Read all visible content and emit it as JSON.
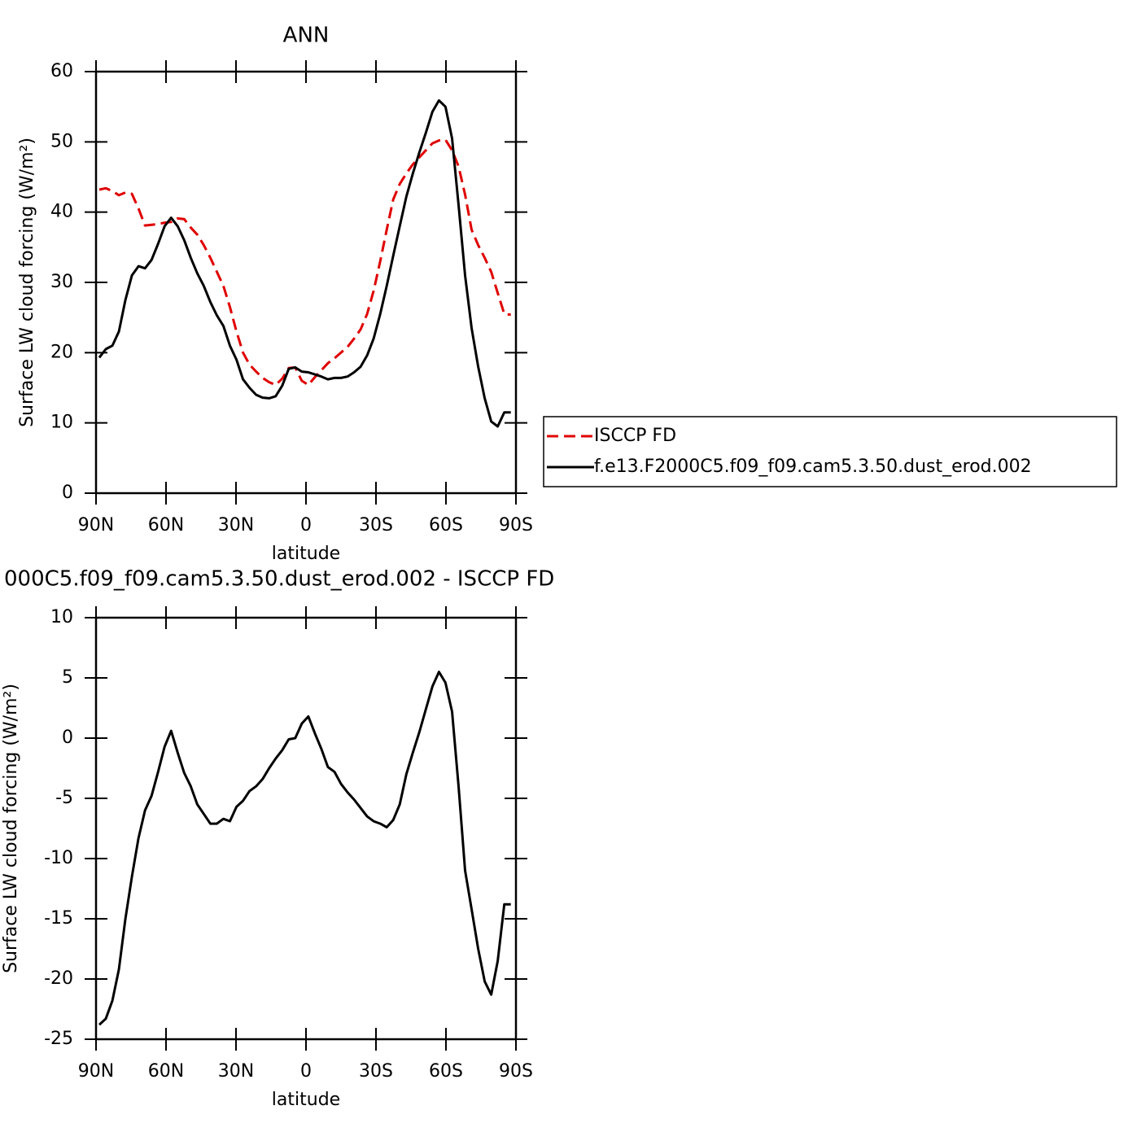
{
  "chart_data": [
    {
      "type": "line",
      "title": "ANN",
      "xlabel": "latitude",
      "ylabel": "Surface LW cloud forcing (W/m²)",
      "x": [
        88.6,
        85.8,
        83.0,
        80.2,
        77.4,
        74.6,
        71.8,
        69.0,
        66.2,
        63.4,
        60.6,
        57.8,
        55.0,
        52.2,
        49.4,
        46.6,
        43.8,
        41.0,
        38.2,
        35.4,
        32.6,
        29.8,
        27.0,
        24.2,
        21.4,
        18.6,
        15.8,
        13.0,
        10.2,
        7.4,
        4.6,
        1.8,
        -1.0,
        -3.8,
        -6.6,
        -9.4,
        -12.2,
        -15.0,
        -17.8,
        -20.6,
        -23.4,
        -26.2,
        -29.0,
        -31.8,
        -34.6,
        -37.4,
        -40.2,
        -43.0,
        -45.8,
        -48.6,
        -51.4,
        -54.2,
        -57.0,
        -59.8,
        -62.6,
        -65.4,
        -68.2,
        -71.0,
        -73.8,
        -76.6,
        -79.4,
        -82.2,
        -85.0,
        -87.8
      ],
      "series": [
        {
          "name": "ISCCP FD",
          "color": "#e00000",
          "style": "dashed",
          "values": [
            43.2,
            43.4,
            43,
            42.4,
            42.8,
            42.6,
            40.5,
            38.1,
            38.2,
            38.3,
            38.5,
            38.6,
            39.1,
            39,
            37.8,
            36.8,
            35.3,
            33.5,
            31.5,
            29.5,
            26.5,
            23,
            20,
            18.3,
            17.3,
            16.4,
            15.8,
            15.4,
            16.3,
            17.8,
            17.9,
            16,
            15.4,
            16.5,
            17.5,
            18.5,
            19.2,
            20,
            20.8,
            22,
            23.3,
            25.5,
            28.8,
            33,
            37.5,
            41.8,
            44,
            45.5,
            46.8,
            47.8,
            48.8,
            49.8,
            50.2,
            50.3,
            48.8,
            46.5,
            42.5,
            37.5,
            35.3,
            33.5,
            31.5,
            28.5,
            25.5,
            25.4
          ]
        },
        {
          "name": "f.e13.F2000C5.f09_f09.cam5.3.50.dust_erod.002",
          "color": "#000000",
          "style": "solid",
          "values": [
            19.3,
            20.5,
            21,
            23,
            27.5,
            31,
            32.3,
            32,
            33.2,
            35.5,
            38,
            39.2,
            38,
            36,
            33.5,
            31.3,
            29.5,
            27.2,
            25.3,
            23.8,
            21,
            19,
            16.2,
            15,
            14,
            13.6,
            13.5,
            13.8,
            15.3,
            17.7,
            17.9,
            17.3,
            17.2,
            16.9,
            16.6,
            16.2,
            16.4,
            16.4,
            16.6,
            17.2,
            18,
            19.6,
            22,
            25.5,
            29.5,
            33.8,
            38,
            42.2,
            45.5,
            48.5,
            51.3,
            54.3,
            55.9,
            55,
            50.5,
            41,
            31,
            23.5,
            18,
            13.5,
            10.2,
            9.5,
            11.5,
            11.5
          ]
        }
      ],
      "xlim": [
        90,
        -90
      ],
      "xticks": [
        {
          "value": 90,
          "label": "90N"
        },
        {
          "value": 60,
          "label": "60N"
        },
        {
          "value": 30,
          "label": "30N"
        },
        0,
        {
          "value": -30,
          "label": "30S"
        },
        {
          "value": -60,
          "label": "60S"
        },
        {
          "value": -90,
          "label": "90S"
        }
      ],
      "ylim": [
        0,
        60
      ],
      "yticks": [
        0,
        10,
        20,
        30,
        40,
        50,
        60
      ],
      "legend": "right"
    },
    {
      "type": "line",
      "title": "000C5.f09_f09.cam5.3.50.dust_erod.002 - ISCCP FD",
      "xlabel": "latitude",
      "ylabel": "Surface LW cloud forcing (W/m²)",
      "x": [
        88.6,
        85.8,
        83.0,
        80.2,
        77.4,
        74.6,
        71.8,
        69.0,
        66.2,
        63.4,
        60.6,
        57.8,
        55.0,
        52.2,
        49.4,
        46.6,
        43.8,
        41.0,
        38.2,
        35.4,
        32.6,
        29.8,
        27.0,
        24.2,
        21.4,
        18.6,
        15.8,
        13.0,
        10.2,
        7.4,
        4.6,
        1.8,
        -1.0,
        -3.8,
        -6.6,
        -9.4,
        -12.2,
        -15.0,
        -17.8,
        -20.6,
        -23.4,
        -26.2,
        -29.0,
        -31.8,
        -34.6,
        -37.4,
        -40.2,
        -43.0,
        -45.8,
        -48.6,
        -51.4,
        -54.2,
        -57.0,
        -59.8,
        -62.6,
        -65.4,
        -68.2,
        -71.0,
        -73.8,
        -76.6,
        -79.4,
        -82.2,
        -85.0,
        -87.8
      ],
      "values": [
        -23.8,
        -23.3,
        -21.8,
        -19.2,
        -15,
        -11.5,
        -8.3,
        -6,
        -4.8,
        -2.8,
        -0.7,
        0.6,
        -1.2,
        -2.9,
        -4,
        -5.5,
        -6.3,
        -7.1,
        -7.1,
        -6.7,
        -6.9,
        -5.7,
        -5.2,
        -4.4,
        -4,
        -3.4,
        -2.5,
        -1.7,
        -1,
        -0.1,
        0,
        1.2,
        1.8,
        0.4,
        -0.9,
        -2.4,
        -2.8,
        -3.8,
        -4.5,
        -5.1,
        -5.8,
        -6.5,
        -6.9,
        -7.1,
        -7.4,
        -6.8,
        -5.5,
        -3,
        -1.2,
        0.5,
        2.4,
        4.3,
        5.5,
        4.6,
        2.2,
        -4,
        -11,
        -14.2,
        -17.5,
        -20.2,
        -21.3,
        -18.5,
        -13.8,
        -13.8
      ],
      "color": "#000000",
      "xlim": [
        90,
        -90
      ],
      "xticks": [
        {
          "value": 90,
          "label": "90N"
        },
        {
          "value": 60,
          "label": "60N"
        },
        {
          "value": 30,
          "label": "30N"
        },
        0,
        {
          "value": -30,
          "label": "30S"
        },
        {
          "value": -60,
          "label": "60S"
        },
        {
          "value": -90,
          "label": "90S"
        }
      ],
      "ylim": [
        -25,
        10
      ],
      "yticks": [
        -25,
        -20,
        -15,
        -10,
        -5,
        0,
        5,
        10
      ]
    }
  ]
}
